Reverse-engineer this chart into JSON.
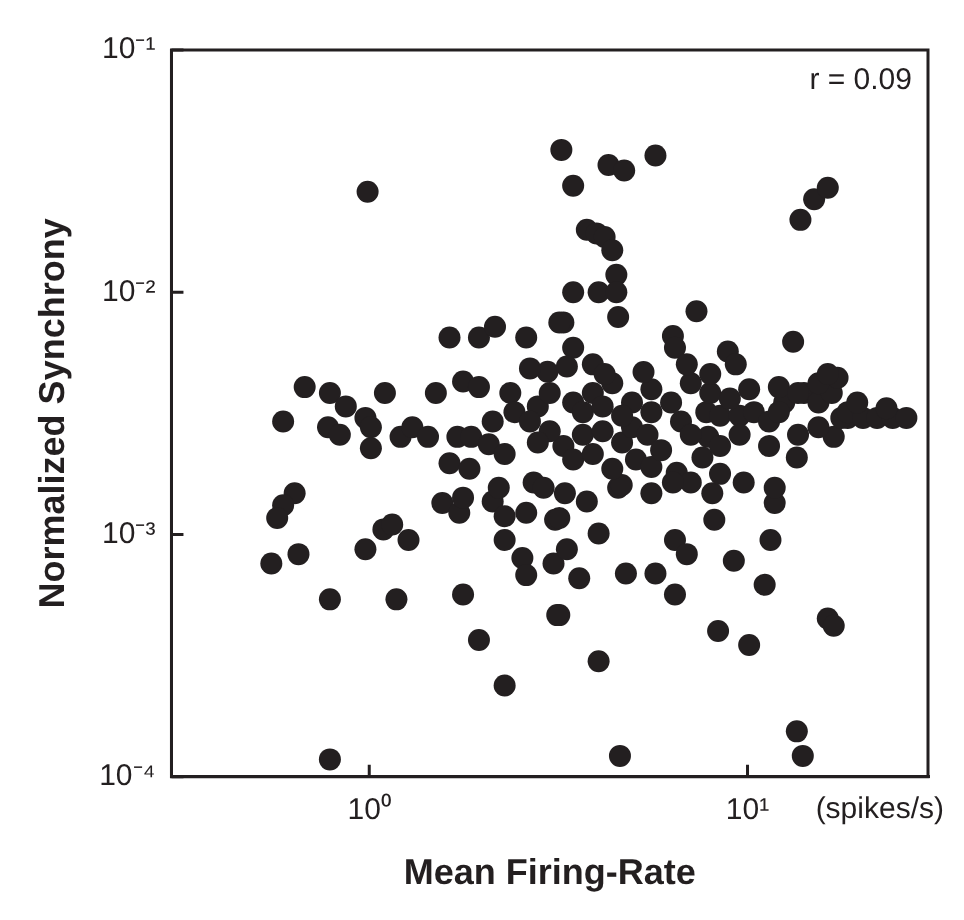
{
  "chart_data": {
    "type": "scatter",
    "xlabel": "Mean Firing-Rate",
    "ylabel": "Normalized Synchrony",
    "log": "xy",
    "grid": false,
    "legend": false,
    "marker": "circle",
    "annotations": [
      "r = 0.09",
      "(spikes/s)"
    ],
    "xlim": [
      0.31,
      30
    ],
    "ylim": [
      0.0001,
      0.1
    ],
    "xticks": [
      {
        "value": 1,
        "label": "10⁰"
      },
      {
        "value": 10,
        "label": "10¹"
      }
    ],
    "yticks": [
      {
        "value": 0.0001,
        "label": "10⁻⁴"
      },
      {
        "value": 0.001,
        "label": "10⁻³"
      },
      {
        "value": 0.01,
        "label": "10⁻²"
      },
      {
        "value": 0.1,
        "label": "10⁻¹"
      }
    ],
    "series": [
      {
        "color": "#231f20",
        "x": [
          0.99,
          3.22,
          4.29,
          4.72,
          5.71,
          13.8,
          15.0,
          16.3,
          3.76,
          3.99,
          4.19,
          4.39,
          3.46,
          3.46,
          4.04,
          4.5,
          4.5,
          3.26,
          4.55,
          7.33,
          13.2,
          6.35,
          6.43,
          8.87,
          3.46,
          1.63,
          1.95,
          2.15,
          2.6,
          3.18,
          2.96,
          0.675,
          0.787,
          1.1,
          1.5,
          1.77,
          1.95,
          2.36,
          0.592,
          0.778,
          0.836,
          0.867,
          0.977,
          1.01,
          1.01,
          1.21,
          1.3,
          1.43,
          1.71,
          1.86,
          2.07,
          2.12,
          1.63,
          1.84,
          2.28,
          0.635,
          0.592,
          0.571,
          0.65,
          0.551,
          0.787,
          1.18,
          0.977,
          1.09,
          1.15,
          1.27,
          1.56,
          1.73,
          1.77,
          1.77,
          1.95,
          2.28,
          0.787,
          2.12,
          2.2,
          2.28,
          2.28,
          2.54,
          2.6,
          2.6,
          3.07,
          3.14,
          3.1,
          2.72,
          2.89,
          4.04,
          3.33,
          3.59,
          4.77,
          5.71,
          6.43,
          6.43,
          6.91,
          9.2,
          11.1,
          11.5,
          8.36,
          10.1,
          16.3,
          16.9,
          4.04,
          13.5,
          14.0,
          4.6,
          3.18,
          8.17,
          11.8,
          11.8,
          8.07,
          9.77,
          5.57,
          3.18,
          3.29,
          3.76,
          4.55,
          13.5,
          16.9,
          18.4,
          7.87,
          7.6,
          6.5,
          7.08,
          8.46,
          6.35,
          5.07,
          5.57,
          4.65,
          3.26,
          3.67,
          4.14,
          4.66,
          3.46,
          3.9,
          4.39,
          4.95,
          5.44,
          5.91,
          6.67,
          7.78,
          8.46,
          9.53,
          10.4,
          11.4,
          12.5,
          14.1,
          15.4,
          16.7,
          17.7,
          18.4,
          20.2,
          22.0,
          24.2,
          26.3,
          2.42,
          2.79,
          3.0,
          3.46,
          3.9,
          4.39,
          4.95,
          5.57,
          6.28,
          7.08,
          7.97,
          8.98,
          10.1,
          12.1,
          13.6,
          15.4,
          17.3,
          19.5,
          23.3,
          16.3,
          2.66,
          3.33,
          3.9,
          4.19,
          6.91,
          5.31,
          7.97,
          9.31,
          2.66,
          3.0,
          2.79,
          3.67,
          4.14,
          4.66,
          5.57,
          7.08,
          8.46,
          9.53,
          11.4,
          13.6,
          15.4,
          12.1
        ],
        "values": [
          0.026,
          0.0387,
          0.0335,
          0.0318,
          0.0367,
          0.0199,
          0.0242,
          0.027,
          0.0181,
          0.0175,
          0.0169,
          0.0149,
          0.0275,
          0.01,
          0.01,
          0.0118,
          0.01,
          0.0075,
          0.0079,
          0.00835,
          0.00625,
          0.0066,
          0.0059,
          0.0057,
          0.0059,
          0.0065,
          0.0065,
          0.0072,
          0.0065,
          0.0075,
          0.0047,
          0.00406,
          0.00384,
          0.00384,
          0.00384,
          0.00428,
          0.00406,
          0.00384,
          0.00293,
          0.00277,
          0.00258,
          0.00338,
          0.00303,
          0.00277,
          0.00227,
          0.00253,
          0.00277,
          0.00253,
          0.00253,
          0.00253,
          0.00236,
          0.00293,
          0.00197,
          0.00187,
          0.00215,
          0.00148,
          0.00132,
          0.00117,
          0.00083,
          0.00076,
          0.00054,
          0.00054,
          0.00087,
          0.00105,
          0.0011,
          0.00095,
          0.00135,
          0.00123,
          0.00142,
          0.000566,
          0.000367,
          0.000238,
          0.000118,
          0.00137,
          0.00156,
          0.00119,
          0.00095,
          0.0008,
          0.00068,
          0.00123,
          0.00076,
          0.000465,
          0.00115,
          0.00164,
          0.00156,
          0.00101,
          0.00087,
          0.00066,
          0.00069,
          0.00069,
          0.000566,
          0.00095,
          0.00083,
          0.00078,
          0.00062,
          0.00095,
          0.0004,
          0.00035,
          0.00045,
          0.00042,
          0.0003,
          0.000154,
          0.000122,
          0.000122,
          0.000465,
          0.00115,
          0.00135,
          0.00156,
          0.00148,
          0.00164,
          0.00148,
          0.00117,
          0.00148,
          0.00137,
          0.00156,
          0.00208,
          0.00253,
          0.00303,
          0.00253,
          0.00208,
          0.0018,
          0.00164,
          0.00178,
          0.00164,
          0.00204,
          0.0019,
          0.0016,
          0.00232,
          0.00258,
          0.00267,
          0.0024,
          0.00204,
          0.00215,
          0.00187,
          0.00277,
          0.00258,
          0.00223,
          0.00293,
          0.0032,
          0.00309,
          0.00309,
          0.0032,
          0.00293,
          0.00351,
          0.00384,
          0.00351,
          0.00384,
          0.00303,
          0.0032,
          0.00303,
          0.00303,
          0.00303,
          0.00303,
          0.0032,
          0.00338,
          0.00384,
          0.00351,
          0.00384,
          0.00421,
          0.00351,
          0.00398,
          0.00351,
          0.00421,
          0.00384,
          0.00364,
          0.00398,
          0.00406,
          0.00384,
          0.00421,
          0.00444,
          0.00351,
          0.00332,
          0.0046,
          0.00485,
          0.00494,
          0.00504,
          0.0046,
          0.00504,
          0.00469,
          0.0046,
          0.00504,
          0.00293,
          0.00267,
          0.0024,
          0.0032,
          0.00338,
          0.00309,
          0.0032,
          0.00258,
          0.00232,
          0.00258,
          0.00232,
          0.00258,
          0.00277,
          0.0032
        ]
      }
    ]
  }
}
